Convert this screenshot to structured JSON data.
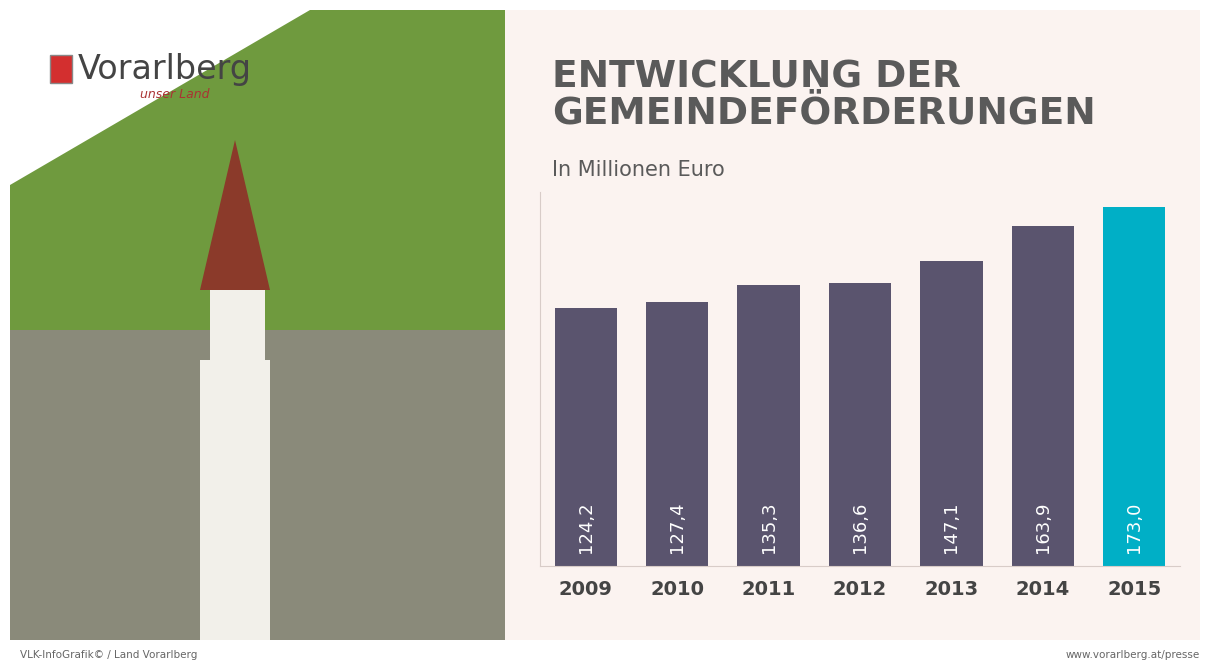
{
  "chart_data": {
    "type": "bar",
    "title": "ENTWICKLUNG DER\nGEMEINDEFÖRDERUNGEN",
    "subtitle": "In Millionen Euro",
    "logo": {
      "name": "Vorarlberg",
      "tagline": "unser Land"
    },
    "source": "VLK-InfoGrafik© / Land Vorarlberg",
    "url": "www.vorarlberg.at/presse",
    "categories": [
      "2009",
      "2010",
      "2011",
      "2012",
      "2013",
      "2014",
      "2015"
    ],
    "values": [
      124.2,
      127.4,
      135.3,
      136.6,
      147.1,
      163.9,
      173.0
    ],
    "value_labels": [
      "124,2",
      "127,4",
      "135,3",
      "136,6",
      "147,1",
      "163,9",
      "173,0"
    ],
    "colors": [
      "#5a546e",
      "#5a546e",
      "#5a546e",
      "#5a546e",
      "#5a546e",
      "#5a546e",
      "#00afc6"
    ],
    "ylim": [
      0,
      180
    ],
    "yticks": [],
    "data_labels": true,
    "tick_labels": "x",
    "grid": false
  }
}
